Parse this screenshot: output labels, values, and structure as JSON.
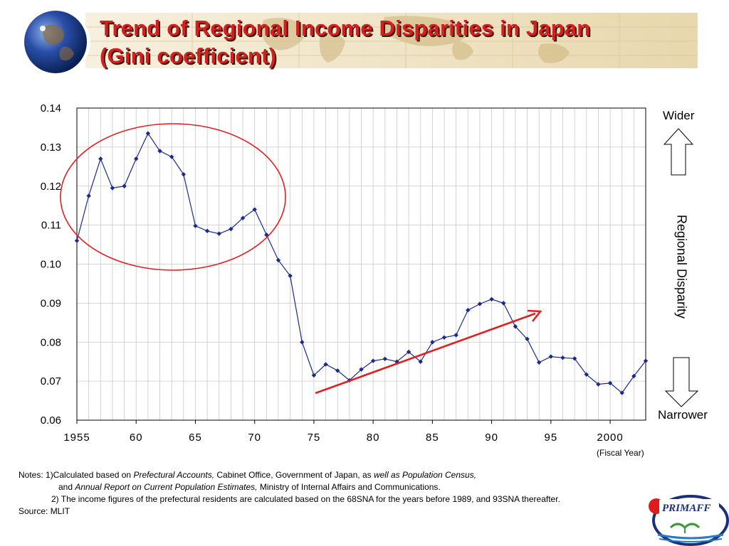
{
  "title": {
    "line1": "Trend of Regional Income Disparities in Japan",
    "line2": "(Gini coefficient)"
  },
  "labels": {
    "wider": "Wider",
    "narrower": "Narrower",
    "disparity": "Regional Disparity",
    "fiscal_year": "(Fiscal Year)"
  },
  "notes": {
    "l1_a": "Notes: 1)Calculated based on ",
    "l1_b": "Prefectural Accounts,",
    "l1_c": " Cabinet Office, Government of Japan, as ",
    "l1_d": "well as Population Census,",
    "l2_a": "and ",
    "l2_b": "Annual Report on Current Population Estimates,",
    "l2_c": " Ministry of Internal Affairs and Communications.",
    "l3": "2) The income figures of the prefectural residents are calculated based on the 68SNA for the years before 1989, and 93SNA thereafter.",
    "source": "Source:  MLIT"
  },
  "logo": {
    "text": "PRIMAFF"
  },
  "colors": {
    "title": "#d3201f",
    "series": "#1a2a8a",
    "annotation": "#e02020"
  },
  "icons": [
    "globe-icon",
    "up-arrow-icon",
    "down-arrow-icon",
    "primaff-logo-icon"
  ],
  "chart_data": {
    "type": "line",
    "x_tick_labels": [
      "1955",
      "60",
      "65",
      "70",
      "75",
      "80",
      "85",
      "90",
      "95",
      "2000"
    ],
    "x_tick_values": [
      1955,
      1960,
      1965,
      1970,
      1975,
      1980,
      1985,
      1990,
      1995,
      2000
    ],
    "y_tick_labels": [
      "0.14",
      "0.13",
      "0.12",
      "0.11",
      "0.10",
      "0.09",
      "0.08",
      "0.07",
      "0.06"
    ],
    "xlim": [
      1955,
      2003
    ],
    "ylim": [
      0.06,
      0.14
    ],
    "grid": true,
    "x": [
      1955,
      1956,
      1957,
      1958,
      1959,
      1960,
      1961,
      1962,
      1963,
      1964,
      1965,
      1966,
      1967,
      1968,
      1969,
      1970,
      1971,
      1972,
      1973,
      1974,
      1975,
      1976,
      1977,
      1978,
      1979,
      1980,
      1981,
      1982,
      1983,
      1984,
      1985,
      1986,
      1987,
      1988,
      1989,
      1990,
      1991,
      1992,
      1993,
      1994,
      1995,
      1996,
      1997,
      1998,
      1999,
      2000,
      2001,
      2002,
      2003
    ],
    "values": [
      0.106,
      0.1175,
      0.127,
      0.1195,
      0.12,
      0.127,
      0.1335,
      0.129,
      0.1275,
      0.123,
      0.1098,
      0.1085,
      0.1078,
      0.109,
      0.1118,
      0.114,
      0.1075,
      0.101,
      0.097,
      0.08,
      0.0715,
      0.0743,
      0.0727,
      0.0702,
      0.073,
      0.0752,
      0.0757,
      0.075,
      0.0775,
      0.075,
      0.08,
      0.0812,
      0.0818,
      0.0882,
      0.0898,
      0.091,
      0.09,
      0.084,
      0.0808,
      0.0748,
      0.0763,
      0.076,
      0.0758,
      0.0717,
      0.0692,
      0.0695,
      0.067,
      0.0713,
      0.0752
    ]
  }
}
